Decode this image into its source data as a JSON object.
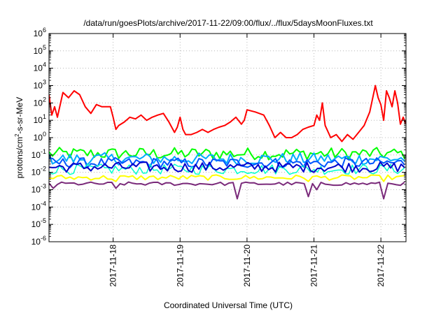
{
  "chart_data": {
    "type": "line",
    "title": "/data/run/goesPlots/archive/2017-11-22/09:00/flux/../flux/5daysMoonFluxes.txt",
    "xlabel": "Coordinated Universal Time (UTC)",
    "ylabel_parts": [
      "protons/cm",
      "2",
      "-s-sr-MeV"
    ],
    "yscale": "log",
    "ylim": [
      1e-06,
      1000000.0
    ],
    "xlim": [
      "2017-11-17 01:00",
      "2017-11-22 09:00"
    ],
    "grid": "dotted",
    "y_ticks": [
      {
        "value": 1e-06,
        "exp": "-6"
      },
      {
        "value": 1e-05,
        "exp": "-5"
      },
      {
        "value": 0.0001,
        "exp": "-4"
      },
      {
        "value": 0.001,
        "exp": "-3"
      },
      {
        "value": 0.01,
        "exp": "-2"
      },
      {
        "value": 0.1,
        "exp": "-1"
      },
      {
        "value": 1,
        "exp": "0"
      },
      {
        "value": 10,
        "exp": "1"
      },
      {
        "value": 100,
        "exp": "2"
      },
      {
        "value": 1000,
        "exp": "3"
      },
      {
        "value": 10000,
        "exp": "4"
      },
      {
        "value": 100000,
        "exp": "5"
      },
      {
        "value": 1000000,
        "exp": "6"
      }
    ],
    "y_tick_base": "10",
    "x_ticks": [
      {
        "label": "2017-11-18",
        "day": 1
      },
      {
        "label": "2017-11-19",
        "day": 2
      },
      {
        "label": "2017-11-20",
        "day": 3
      },
      {
        "label": "2017-11-21",
        "day": 4
      },
      {
        "label": "2017-11-22",
        "day": 5
      }
    ],
    "series": [
      {
        "color": "#ff0000",
        "width": 2,
        "points": [
          [
            "2017-11-17 01:00",
            300
          ],
          [
            "2017-11-17 02:00",
            20
          ],
          [
            "2017-11-17 03:00",
            60
          ],
          [
            "2017-11-17 04:00",
            15
          ],
          [
            "2017-11-17 06:00",
            400
          ],
          [
            "2017-11-17 08:00",
            200
          ],
          [
            "2017-11-17 10:00",
            500
          ],
          [
            "2017-11-17 12:00",
            300
          ],
          [
            "2017-11-17 14:00",
            60
          ],
          [
            "2017-11-17 16:00",
            25
          ],
          [
            "2017-11-17 18:00",
            80
          ],
          [
            "2017-11-17 20:00",
            60
          ],
          [
            "2017-11-17 23:00",
            60
          ],
          [
            "2017-11-18 00:00",
            15
          ],
          [
            "2017-11-18 01:00",
            3
          ],
          [
            "2017-11-18 02:00",
            5
          ],
          [
            "2017-11-18 04:00",
            8
          ],
          [
            "2017-11-18 06:00",
            15
          ],
          [
            "2017-11-18 08:00",
            12
          ],
          [
            "2017-11-18 10:00",
            20
          ],
          [
            "2017-11-18 12:00",
            10
          ],
          [
            "2017-11-18 14:00",
            15
          ],
          [
            "2017-11-18 16:00",
            20
          ],
          [
            "2017-11-18 18:00",
            25
          ],
          [
            "2017-11-18 20:00",
            8
          ],
          [
            "2017-11-18 22:00",
            2
          ],
          [
            "2017-11-18 23:00",
            4
          ],
          [
            "2017-11-19 00:00",
            15
          ],
          [
            "2017-11-19 01:00",
            3
          ],
          [
            "2017-11-19 02:00",
            1.5
          ],
          [
            "2017-11-19 04:00",
            1.5
          ],
          [
            "2017-11-19 06:00",
            2
          ],
          [
            "2017-11-19 08:00",
            3
          ],
          [
            "2017-11-19 10:00",
            2
          ],
          [
            "2017-11-19 12:00",
            3
          ],
          [
            "2017-11-19 14:00",
            4
          ],
          [
            "2017-11-19 16:00",
            5
          ],
          [
            "2017-11-19 18:00",
            8
          ],
          [
            "2017-11-19 20:00",
            15
          ],
          [
            "2017-11-19 22:00",
            6
          ],
          [
            "2017-11-19 23:00",
            10
          ],
          [
            "2017-11-20 00:00",
            40
          ],
          [
            "2017-11-20 03:00",
            30
          ],
          [
            "2017-11-20 06:00",
            20
          ],
          [
            "2017-11-20 08:00",
            5
          ],
          [
            "2017-11-20 10:00",
            1
          ],
          [
            "2017-11-20 12:00",
            2
          ],
          [
            "2017-11-20 14:00",
            1
          ],
          [
            "2017-11-20 16:00",
            1
          ],
          [
            "2017-11-20 18:00",
            1.5
          ],
          [
            "2017-11-20 20:00",
            3
          ],
          [
            "2017-11-20 22:00",
            4
          ],
          [
            "2017-11-21 00:00",
            5
          ],
          [
            "2017-11-21 01:00",
            20
          ],
          [
            "2017-11-21 02:00",
            10
          ],
          [
            "2017-11-21 03:00",
            100
          ],
          [
            "2017-11-21 04:00",
            5
          ],
          [
            "2017-11-21 06:00",
            1
          ],
          [
            "2017-11-21 08:00",
            1.5
          ],
          [
            "2017-11-21 10:00",
            0.6
          ],
          [
            "2017-11-21 12:00",
            1.5
          ],
          [
            "2017-11-21 14:00",
            0.8
          ],
          [
            "2017-11-21 16:00",
            2
          ],
          [
            "2017-11-21 18:00",
            5
          ],
          [
            "2017-11-21 20:00",
            30
          ],
          [
            "2017-11-21 22:00",
            1000
          ],
          [
            "2017-11-21 23:00",
            200
          ],
          [
            "2017-11-22 00:00",
            80
          ],
          [
            "2017-11-22 01:00",
            10
          ],
          [
            "2017-11-22 02:00",
            500
          ],
          [
            "2017-11-22 03:00",
            200
          ],
          [
            "2017-11-22 04:00",
            60
          ],
          [
            "2017-11-22 05:00",
            500
          ],
          [
            "2017-11-22 06:00",
            100
          ],
          [
            "2017-11-22 07:00",
            6
          ],
          [
            "2017-11-22 08:00",
            15
          ],
          [
            "2017-11-22 09:00",
            6
          ]
        ]
      },
      {
        "color": "#00ff00",
        "width": 2,
        "base": 0.12,
        "noise": 0.35,
        "period_hours": 2.5,
        "dips": []
      },
      {
        "color": "#00aaff",
        "width": 2,
        "base": 0.06,
        "noise": 0.35,
        "period_hours": 2.5,
        "dips": []
      },
      {
        "color": "#0055ff",
        "width": 2,
        "base": 0.035,
        "noise": 0.3,
        "period_hours": 2.5,
        "dips": []
      },
      {
        "color": "#00ffcc",
        "width": 1.5,
        "base": 0.015,
        "noise": 0.3,
        "period_hours": 2.5,
        "dips": []
      },
      {
        "color": "#0000cc",
        "width": 2,
        "base": 0.02,
        "noise": 0.3,
        "period_hours": 2.5,
        "dips": []
      },
      {
        "color": "#ffff00",
        "width": 2,
        "base": 0.005,
        "noise": 0.15,
        "period_hours": 3.0,
        "dips": [
          [
            "2017-11-18 01:00",
            0.003
          ],
          [
            "2017-11-20 22:00",
            0.003
          ],
          [
            "2017-11-22 00:30",
            0.003
          ]
        ]
      },
      {
        "color": "#7a2a7a",
        "width": 2,
        "base": 0.0022,
        "noise": 0.1,
        "period_hours": 3.0,
        "dips": [
          [
            "2017-11-17 02:00",
            0.0012
          ],
          [
            "2017-11-18 01:30",
            0.0012
          ],
          [
            "2017-11-19 21:00",
            0.0003
          ],
          [
            "2017-11-20 22:00",
            0.0004
          ],
          [
            "2017-11-21 01:00",
            0.001
          ],
          [
            "2017-11-22 00:30",
            0.0003
          ]
        ]
      }
    ]
  }
}
